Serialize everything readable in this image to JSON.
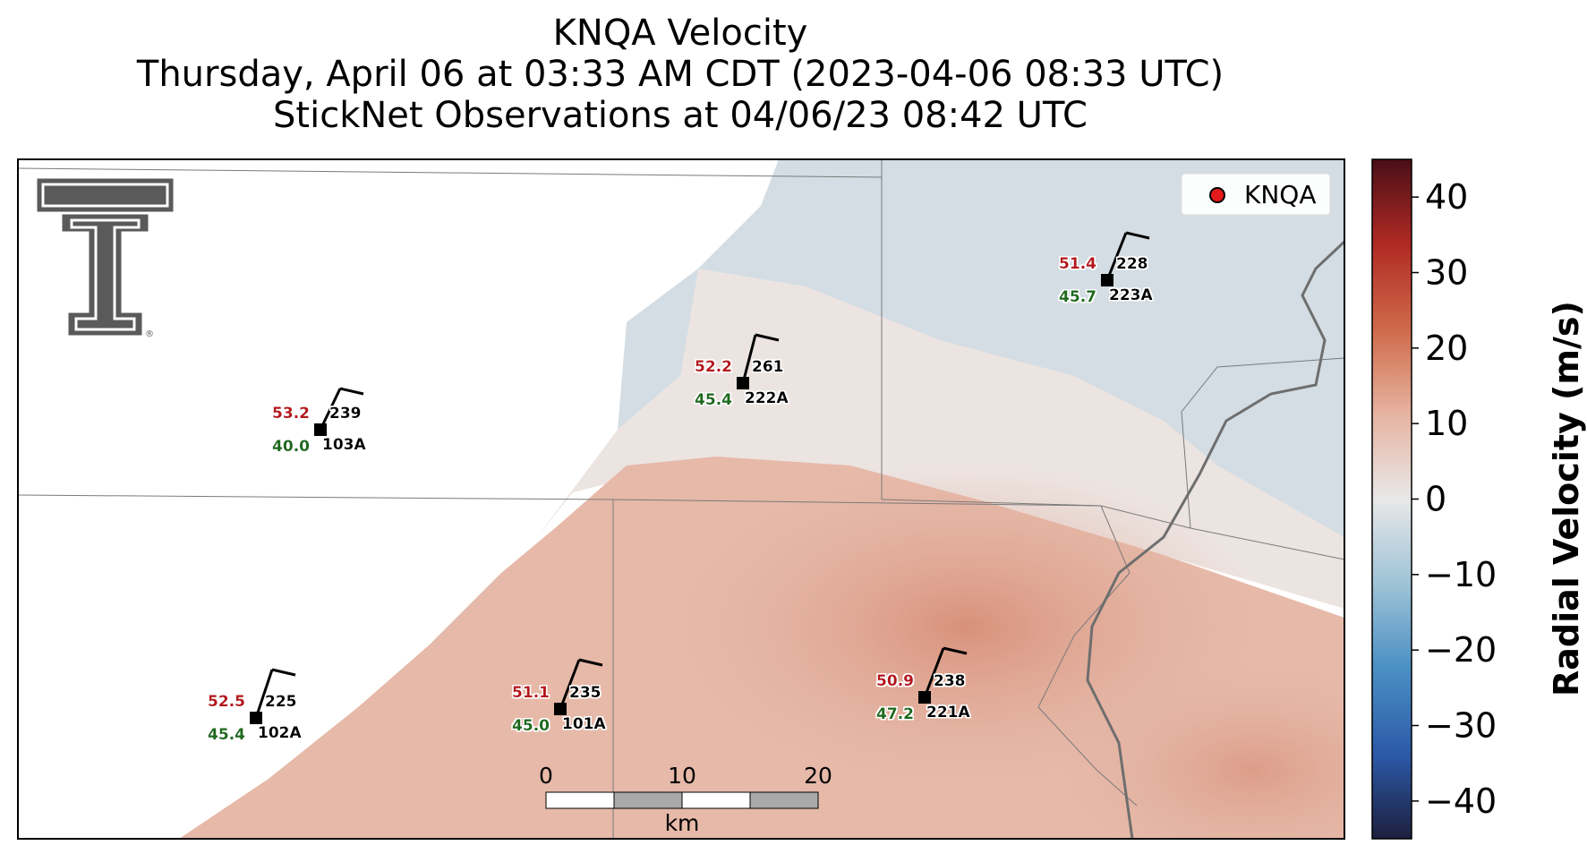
{
  "title": {
    "line1": "KNQA Velocity",
    "line2": "Thursday, April 06 at 03:33 AM CDT (2023-04-06 08:33 UTC)",
    "line3": "StickNet Observations at 04/06/23 08:42 UTC"
  },
  "legend": {
    "marker_label": "KNQA",
    "marker_color": "#e31a1c"
  },
  "logo": {
    "name": "Texas Tech Double T",
    "registered_mark": "®"
  },
  "colorbar": {
    "label": "Radial Velocity (m/s)",
    "ticks": [
      "40",
      "30",
      "20",
      "10",
      "0",
      "−10",
      "−20",
      "−30",
      "−40"
    ],
    "tick_values": [
      40,
      30,
      20,
      10,
      0,
      -10,
      -20,
      -30,
      -40
    ],
    "range": [
      -45,
      45
    ],
    "colors": [
      "#1d1f3e",
      "#2c5aa8",
      "#4a8fc4",
      "#9ec3d6",
      "#e8e8e8",
      "#e6b3a0",
      "#cf6a4a",
      "#b02a24",
      "#4a0f17"
    ]
  },
  "scalebar": {
    "ticks": [
      "0",
      "10",
      "20"
    ],
    "unit": "km"
  },
  "stations": [
    {
      "id": "103A",
      "speed": "53.2",
      "dir": "239",
      "dewpoint": "40.0"
    },
    {
      "id": "222A",
      "speed": "52.2",
      "dir": "261",
      "dewpoint": "45.4"
    },
    {
      "id": "223A",
      "speed": "51.4",
      "dir": "228",
      "dewpoint": "45.7"
    },
    {
      "id": "102A",
      "speed": "52.5",
      "dir": "225",
      "dewpoint": "45.4"
    },
    {
      "id": "101A",
      "speed": "51.1",
      "dir": "235",
      "dewpoint": "45.0"
    },
    {
      "id": "221A",
      "speed": "50.9",
      "dir": "238",
      "dewpoint": "47.2"
    }
  ],
  "colors": {
    "speed_text": "#b5121b",
    "dewpoint_text": "#1a6b1a",
    "id_text": "#000000"
  }
}
